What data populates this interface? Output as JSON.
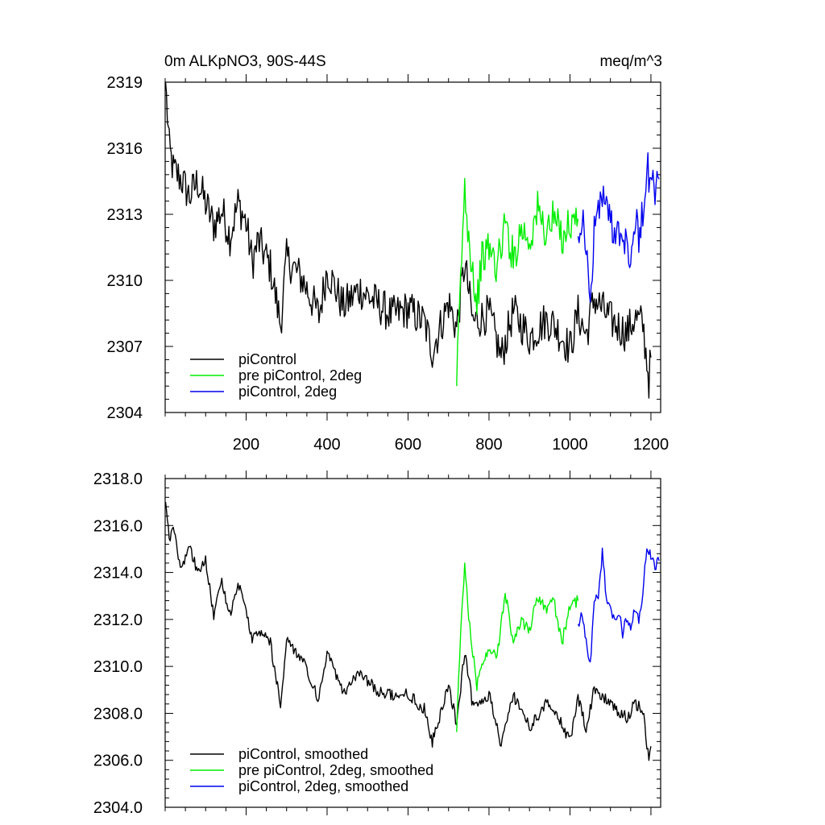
{
  "chart_data": [
    {
      "type": "line",
      "title_left": "0m ALKpNO3, 90S-44S",
      "title_right": "meq/m^3",
      "xlim": [
        0,
        1224
      ],
      "ylim": [
        2304,
        2319
      ],
      "yticks": [
        2304,
        2307,
        2310,
        2313,
        2316,
        2319
      ],
      "xticks": [
        200,
        400,
        600,
        800,
        1000,
        1200
      ],
      "series": [
        {
          "name": "piControl",
          "color": "#000000",
          "x": [
            1,
            10,
            20,
            40,
            60,
            80,
            100,
            120,
            140,
            160,
            180,
            200,
            215,
            230,
            260,
            285,
            300,
            340,
            380,
            400,
            440,
            480,
            520,
            560,
            600,
            640,
            660,
            700,
            720,
            740,
            760,
            800,
            830,
            860,
            900,
            940,
            960,
            1000,
            1020,
            1040,
            1060,
            1100,
            1140,
            1160,
            1180,
            1195,
            1200
          ],
          "y": [
            2319.0,
            2316.0,
            2315.0,
            2314.6,
            2313.8,
            2314.5,
            2313.5,
            2312.5,
            2313.2,
            2312.0,
            2313.5,
            2312.6,
            2310.8,
            2311.8,
            2310.6,
            2308.0,
            2311.0,
            2310.0,
            2308.4,
            2310.5,
            2308.8,
            2309.6,
            2309.0,
            2308.4,
            2308.7,
            2308.1,
            2306.8,
            2309.0,
            2307.8,
            2310.8,
            2308.1,
            2308.5,
            2306.5,
            2308.6,
            2307.4,
            2308.2,
            2308.0,
            2306.9,
            2308.5,
            2307.5,
            2309.2,
            2308.2,
            2307.6,
            2308.3,
            2308.0,
            2305.5,
            2306.5
          ]
        },
        {
          "name": "pre piControl, 2deg",
          "color": "#00ee00",
          "x": [
            720,
            730,
            740,
            750,
            760,
            770,
            780,
            800,
            820,
            840,
            860,
            880,
            900,
            920,
            940,
            960,
            980,
            1000,
            1020
          ],
          "y": [
            2305.2,
            2310.0,
            2314.2,
            2312.0,
            2310.5,
            2308.8,
            2310.8,
            2311.5,
            2310.6,
            2312.6,
            2311.0,
            2312.4,
            2311.8,
            2313.2,
            2312.2,
            2312.8,
            2312.0,
            2312.6,
            2312.8
          ]
        },
        {
          "name": "piControl, 2deg",
          "color": "#0000ee",
          "x": [
            1020,
            1030,
            1040,
            1050,
            1060,
            1070,
            1080,
            1090,
            1100,
            1110,
            1120,
            1130,
            1140,
            1150,
            1160,
            1170,
            1180,
            1190,
            1200,
            1210,
            1220
          ],
          "y": [
            2312.0,
            2313.0,
            2311.5,
            2308.5,
            2312.6,
            2313.0,
            2314.0,
            2313.2,
            2312.8,
            2312.2,
            2312.6,
            2311.6,
            2312.4,
            2310.8,
            2312.8,
            2312.0,
            2313.2,
            2315.0,
            2314.6,
            2314.0,
            2314.6
          ]
        }
      ],
      "legend": [
        {
          "label": "piControl",
          "color": "#000000"
        },
        {
          "label": "pre piControl, 2deg",
          "color": "#00ee00"
        },
        {
          "label": "piControl, 2deg",
          "color": "#0000ee"
        }
      ]
    },
    {
      "type": "line",
      "xlim": [
        0,
        1224
      ],
      "ylim": [
        2304.0,
        2318.0
      ],
      "yticks": [
        "2304.0",
        "2306.0",
        "2308.0",
        "2310.0",
        "2312.0",
        "2314.0",
        "2316.0",
        "2318.0"
      ],
      "series": [
        {
          "name": "piControl, smoothed",
          "color": "#000000",
          "x": [
            1,
            10,
            20,
            40,
            60,
            80,
            100,
            120,
            140,
            160,
            180,
            200,
            215,
            230,
            260,
            285,
            300,
            340,
            380,
            400,
            440,
            480,
            520,
            560,
            600,
            640,
            660,
            700,
            720,
            740,
            760,
            800,
            830,
            860,
            900,
            940,
            960,
            1000,
            1020,
            1040,
            1060,
            1100,
            1140,
            1160,
            1180,
            1195,
            1200
          ],
          "y": [
            2317.0,
            2315.5,
            2315.8,
            2314.2,
            2315.2,
            2314.0,
            2314.6,
            2312.2,
            2313.6,
            2312.2,
            2313.6,
            2312.4,
            2311.0,
            2311.6,
            2311.0,
            2308.3,
            2311.2,
            2310.2,
            2308.6,
            2310.6,
            2308.8,
            2309.8,
            2309.0,
            2308.8,
            2308.8,
            2308.2,
            2306.8,
            2309.2,
            2307.6,
            2310.6,
            2308.3,
            2308.8,
            2306.6,
            2308.8,
            2307.4,
            2308.4,
            2308.2,
            2306.8,
            2308.6,
            2307.4,
            2309.0,
            2308.4,
            2307.8,
            2308.4,
            2308.2,
            2305.9,
            2306.6
          ]
        },
        {
          "name": "pre piControl, 2deg, smoothed",
          "color": "#00ee00",
          "x": [
            720,
            730,
            740,
            750,
            760,
            770,
            780,
            800,
            820,
            840,
            860,
            880,
            900,
            920,
            940,
            960,
            980,
            1000,
            1020
          ],
          "y": [
            2307.2,
            2311.5,
            2314.2,
            2312.2,
            2310.6,
            2309.2,
            2309.8,
            2310.8,
            2310.4,
            2313.2,
            2311.0,
            2312.0,
            2311.5,
            2313.0,
            2312.4,
            2312.8,
            2311.0,
            2312.6,
            2312.8
          ]
        },
        {
          "name": "piControl, 2deg, smoothed",
          "color": "#0000ee",
          "x": [
            1020,
            1030,
            1040,
            1050,
            1060,
            1070,
            1080,
            1090,
            1100,
            1110,
            1120,
            1130,
            1140,
            1150,
            1160,
            1170,
            1180,
            1190,
            1200,
            1210,
            1220
          ],
          "y": [
            2311.8,
            2312.2,
            2311.2,
            2310.0,
            2312.6,
            2313.0,
            2314.8,
            2312.8,
            2312.6,
            2312.0,
            2312.4,
            2311.4,
            2312.0,
            2311.6,
            2312.4,
            2312.0,
            2313.2,
            2315.2,
            2314.6,
            2314.2,
            2314.5
          ]
        }
      ],
      "legend": [
        {
          "label": "piControl, smoothed",
          "color": "#000000"
        },
        {
          "label": "pre piControl, 2deg, smoothed",
          "color": "#00ee00"
        },
        {
          "label": "piControl, 2deg, smoothed",
          "color": "#0000ee"
        }
      ]
    }
  ]
}
